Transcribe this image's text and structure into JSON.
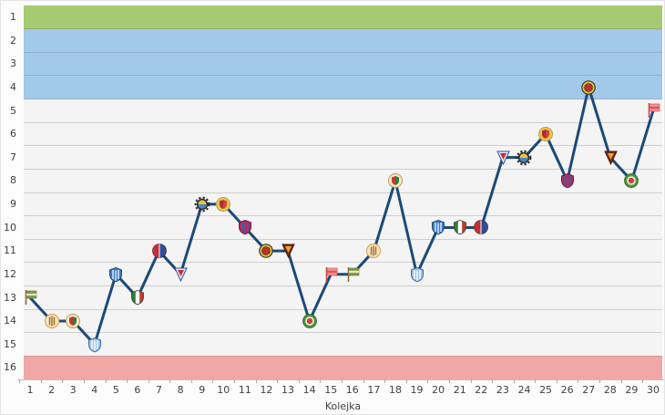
{
  "chart_data": {
    "type": "line",
    "title": "",
    "xlabel": "Kolejka",
    "ylabel": "",
    "x": [
      1,
      2,
      3,
      4,
      5,
      6,
      7,
      8,
      9,
      10,
      11,
      12,
      13,
      14,
      15,
      16,
      17,
      18,
      19,
      20,
      21,
      22,
      23,
      24,
      25,
      26,
      27,
      28,
      29,
      30
    ],
    "values": [
      13,
      14,
      14,
      15,
      12,
      13,
      11,
      12,
      9,
      9,
      10,
      11,
      11,
      14,
      12,
      12,
      11,
      8,
      12,
      10,
      10,
      10,
      7,
      7,
      6,
      8,
      4,
      7,
      8,
      5
    ],
    "y_ticks": [
      1,
      2,
      3,
      4,
      5,
      6,
      7,
      8,
      9,
      10,
      11,
      12,
      13,
      14,
      15,
      16
    ],
    "ylim": [
      1,
      16
    ],
    "y_inverted": true,
    "grid": true,
    "legend": "none",
    "zones": [
      {
        "name": "champion-zone",
        "from": 1,
        "to": 1,
        "color": "#a5cb70"
      },
      {
        "name": "promotion-zone",
        "from": 2,
        "to": 4,
        "color": "#a2c9ea"
      },
      {
        "name": "relegation-zone",
        "from": 16,
        "to": 16,
        "color": "#f2a7a7"
      }
    ],
    "colors": {
      "line": "#1c4a77",
      "plot_row": "#f4f4f4",
      "grid": "#6e6e6e",
      "background": "#fcfcfc",
      "border": "#e3e3e3",
      "axis_text": "#3f3f3f",
      "tick": "#a8a8a8"
    },
    "point_icons": {
      "cycle_period": 15,
      "opponents": [
        {
          "name": "green-flag-crest-icon",
          "type": "flag",
          "colors": [
            "#6f9c44",
            "#e9e2c2",
            "#8a6d3b"
          ]
        },
        {
          "name": "amber-striped-circle-crest-icon",
          "type": "circle-striped",
          "colors": [
            "#f5e7c6",
            "#a8651e",
            "#e0a85a"
          ]
        },
        {
          "name": "tricolor-shield-circle-crest-icon",
          "type": "shield-on-circle",
          "colors": [
            "#f5e7c6",
            "#c23a2e",
            "#2e7d39"
          ]
        },
        {
          "name": "sky-blue-shield-crest-icon",
          "type": "shield-striped",
          "colors": [
            "#9dc2ea",
            "#ffffff",
            "#3c6ca8"
          ]
        },
        {
          "name": "blue-striped-shield-crest-icon",
          "type": "shield-striped",
          "colors": [
            "#3f7cc4",
            "#d8e8f8",
            "#1c4a77"
          ]
        },
        {
          "name": "green-white-red-shield-crest-icon",
          "type": "shield-vertical",
          "colors": [
            "#2e7d39",
            "#ffffff",
            "#c23a2e"
          ]
        },
        {
          "name": "red-blue-half-crest-icon",
          "type": "half",
          "colors": [
            "#c03038",
            "#2f4e9e",
            "#ffffff"
          ]
        },
        {
          "name": "tricolor-pennant-crest-icon",
          "type": "pennant",
          "colors": [
            "#e8e8f2",
            "#c03038",
            "#2f4e9e"
          ]
        },
        {
          "name": "cog-crest-icon",
          "type": "gear",
          "colors": [
            "#2b2b2b",
            "#e8c43c",
            "#4a86c8"
          ]
        },
        {
          "name": "gold-red-shield-crest-icon",
          "type": "shield-on-circle",
          "colors": [
            "#e9c93e",
            "#b02838",
            "#d04048"
          ]
        },
        {
          "name": "crimson-striped-shield-crest-icon",
          "type": "shield-striped",
          "colors": [
            "#b12a5b",
            "#4a5fa8",
            "#7a1a3e"
          ]
        },
        {
          "name": "gold-ring-crest-icon",
          "type": "ring",
          "colors": [
            "#e8c028",
            "#c03030",
            "#3a3a3a"
          ]
        },
        {
          "name": "maroon-pennant-crest-icon",
          "type": "pennant",
          "colors": [
            "#7a2812",
            "#e8a820",
            "#4a1808"
          ]
        },
        {
          "name": "green-red-rosette-crest-icon",
          "type": "rosette",
          "colors": [
            "#4f9a3e",
            "#cc4040",
            "#f0f0e0"
          ]
        },
        {
          "name": "rose-flag-crest-icon",
          "type": "flag",
          "colors": [
            "#f2949a",
            "#e05858",
            "#c84848"
          ]
        }
      ]
    }
  }
}
